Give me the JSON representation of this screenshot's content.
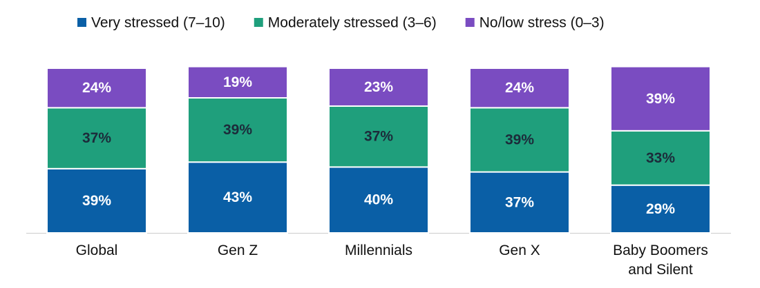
{
  "chart_data": {
    "type": "stacked_bar",
    "categories": [
      "Global",
      "Gen Z",
      "Millennials",
      "Gen X",
      "Baby Boomers and Silent"
    ],
    "series": [
      {
        "name": "Very stressed (7–10)",
        "color": "#0a5fa6",
        "label_color": "#ffffff",
        "values": [
          39,
          43,
          40,
          37,
          29
        ],
        "value_labels": [
          "39%",
          "43%",
          "40%",
          "37%",
          "29%"
        ]
      },
      {
        "name": "Moderately stressed (3–6)",
        "color": "#1f9f7c",
        "label_color": "#1c2b3a",
        "values": [
          37,
          39,
          37,
          39,
          33
        ],
        "value_labels": [
          "37%",
          "39%",
          "37%",
          "39%",
          "33%"
        ]
      },
      {
        "name": "No/low stress (0–3)",
        "color": "#7a4cc1",
        "label_color": "#ffffff",
        "values": [
          24,
          19,
          23,
          24,
          39
        ],
        "value_labels": [
          "24%",
          "19%",
          "23%",
          "24%",
          "39%"
        ]
      }
    ]
  }
}
